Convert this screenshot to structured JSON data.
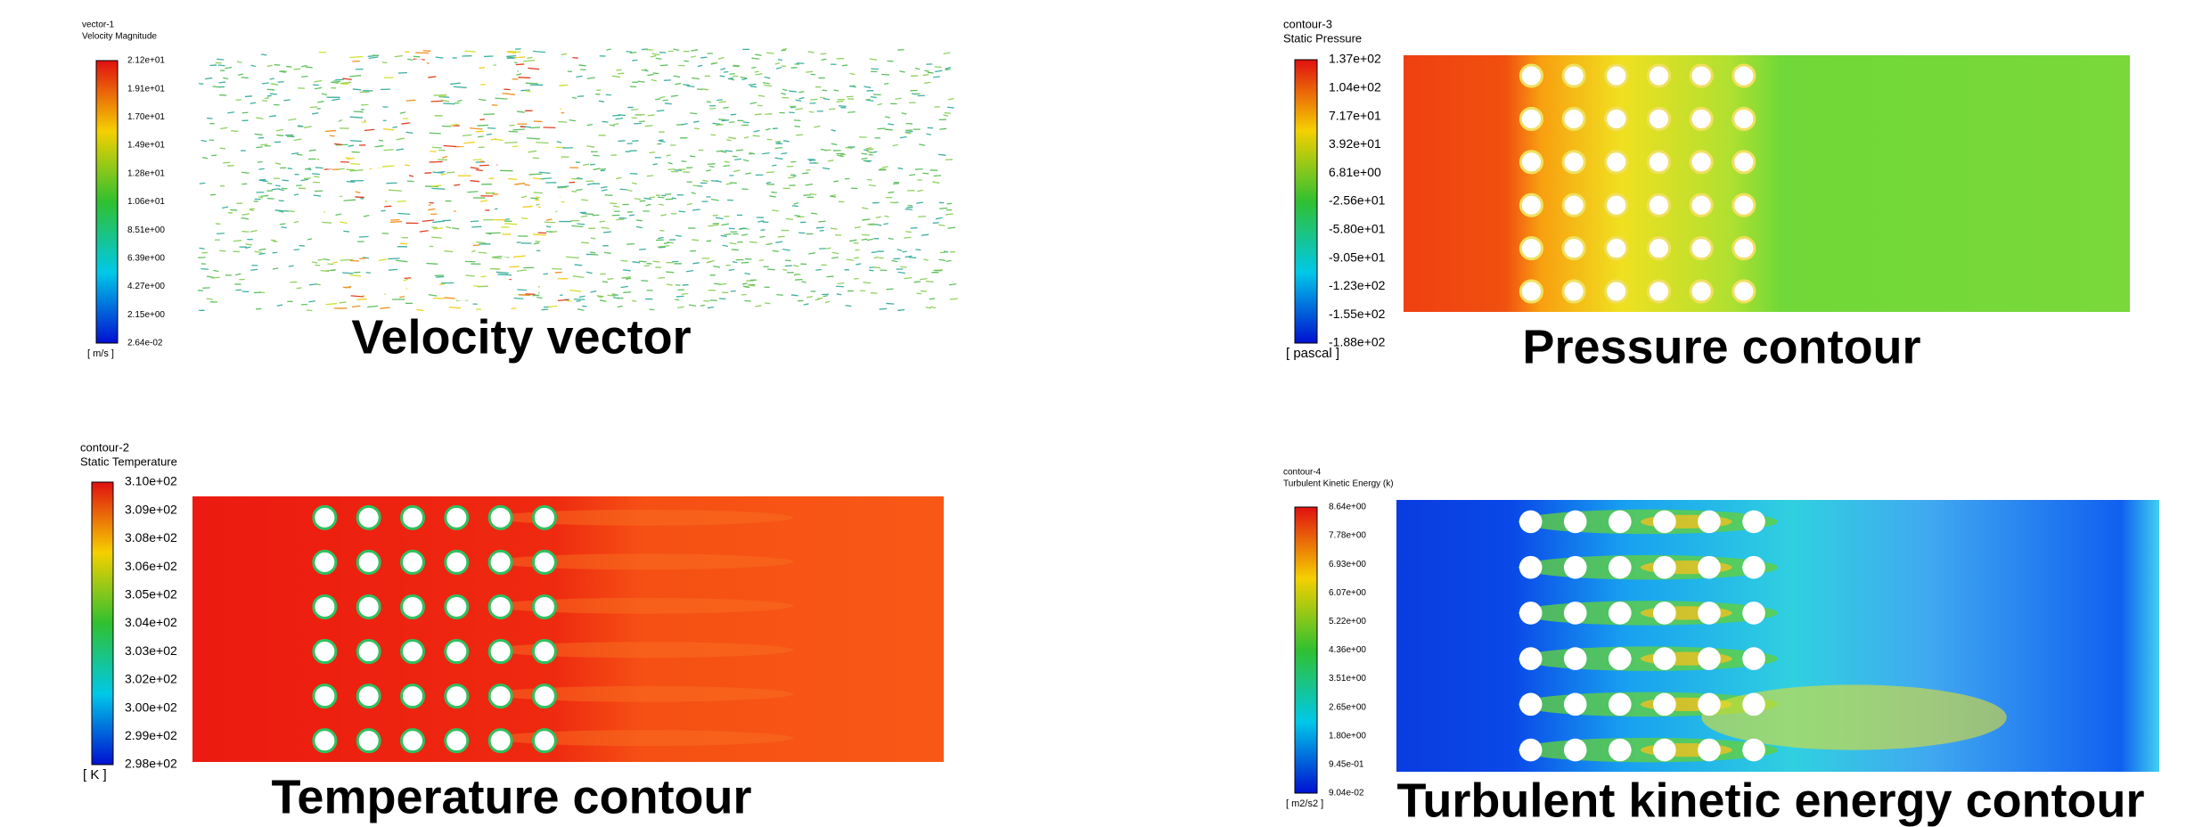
{
  "panels": [
    {
      "id": "vector-1",
      "variable": "Velocity Magnitude",
      "unit": "[ m/s ]",
      "caption": "Velocity vector",
      "legend_labels": [
        "2.12e+01",
        "1.91e+01",
        "1.70e+01",
        "1.49e+01",
        "1.28e+01",
        "1.06e+01",
        "8.51e+00",
        "6.39e+00",
        "4.27e+00",
        "2.15e+00",
        "2.64e-02"
      ]
    },
    {
      "id": "contour-3",
      "variable": "Static Pressure",
      "unit": "[ pascal ]",
      "caption": "Pressure contour",
      "legend_labels": [
        "1.37e+02",
        "1.04e+02",
        "7.17e+01",
        "3.92e+01",
        "6.81e+00",
        "-2.56e+01",
        "-5.80e+01",
        "-9.05e+01",
        "-1.23e+02",
        "-1.55e+02",
        "-1.88e+02"
      ]
    },
    {
      "id": "contour-2",
      "variable": "Static Temperature",
      "unit": "[ K ]",
      "caption": "Temperature contour",
      "legend_labels": [
        "3.10e+02",
        "3.09e+02",
        "3.08e+02",
        "3.06e+02",
        "3.05e+02",
        "3.04e+02",
        "3.03e+02",
        "3.02e+02",
        "3.00e+02",
        "2.99e+02",
        "2.98e+02"
      ]
    },
    {
      "id": "contour-4",
      "variable": "Turbulent Kinetic Energy (k)",
      "unit": "[ m2/s2 ]",
      "caption": "Turbulent kinetic energy  contour",
      "legend_labels": [
        "8.64e+00",
        "7.78e+00",
        "6.93e+00",
        "6.07e+00",
        "5.22e+00",
        "4.36e+00",
        "3.51e+00",
        "2.65e+00",
        "1.80e+00",
        "9.45e-01",
        "9.04e-02"
      ]
    }
  ]
}
